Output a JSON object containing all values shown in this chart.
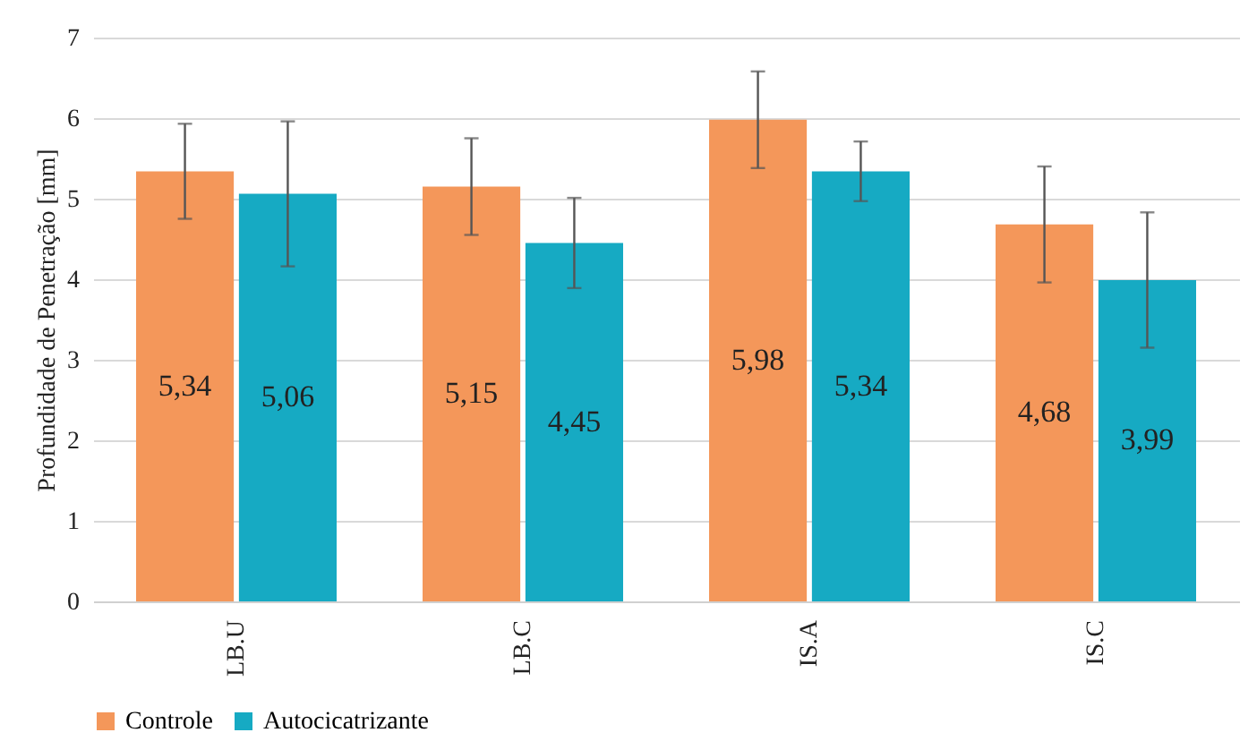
{
  "chart_data": {
    "type": "bar",
    "ylabel": "Profundidade de Penetração [mm]",
    "categories": [
      "LB.U",
      "LB.C",
      "IS.A",
      "IS.C"
    ],
    "series": [
      {
        "name": "Controle",
        "color": "#f4975a",
        "values": [
          5.34,
          5.15,
          5.98,
          4.68
        ],
        "errors": [
          0.59,
          0.6,
          0.6,
          0.72
        ],
        "value_labels": [
          "5,34",
          "5,15",
          "5,98",
          "4,68"
        ]
      },
      {
        "name": "Autocicatrizante",
        "color": "#16aac3",
        "values": [
          5.06,
          4.45,
          5.34,
          3.99
        ],
        "errors": [
          0.9,
          0.56,
          0.37,
          0.84
        ],
        "value_labels": [
          "5,06",
          "4,45",
          "5,34",
          "3,99"
        ]
      }
    ],
    "ylim": [
      0,
      7
    ],
    "yticks": [
      0,
      1,
      2,
      3,
      4,
      5,
      6,
      7
    ],
    "grid": "y",
    "legend": "bottom"
  }
}
